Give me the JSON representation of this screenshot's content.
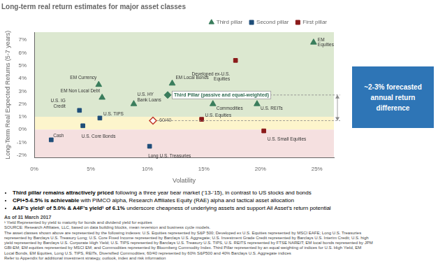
{
  "chart_data": {
    "type": "scatter",
    "title": "Long-term real return estimates for major asset classes",
    "x_label": "Volatility",
    "y_label": "Long-Term Real Expected Returns (5-7 years)",
    "xlim": [
      0.0,
      0.265
    ],
    "xticks": [
      {
        "value": 0.0,
        "label": "0%"
      },
      {
        "value": 0.05,
        "label": "5%"
      },
      {
        "value": 0.1,
        "label": "10%"
      },
      {
        "value": 0.15,
        "label": "15%"
      },
      {
        "value": 0.2,
        "label": "20%"
      },
      {
        "value": 0.25,
        "label": "25%"
      }
    ],
    "ylim": [
      -0.022,
      0.076
    ],
    "yticks": [
      {
        "value": -0.02,
        "label": "-2%"
      },
      {
        "value": -0.01,
        "label": "-1%"
      },
      {
        "value": 0.0,
        "label": "0%"
      },
      {
        "value": 0.01,
        "label": "1%"
      },
      {
        "value": 0.02,
        "label": "2%"
      },
      {
        "value": 0.03,
        "label": "3%"
      },
      {
        "value": 0.04,
        "label": "4%"
      },
      {
        "value": 0.05,
        "label": "5%"
      },
      {
        "value": 0.06,
        "label": "6%"
      },
      {
        "value": 0.07,
        "label": "7%"
      }
    ],
    "grid": false,
    "legend": "top",
    "series": [
      {
        "name": "Third pillar",
        "color": "#3a7d5c",
        "marker": "triangle",
        "points": [
          {
            "label": "EM Non Local Debt",
            "x": 0.06,
            "y": 0.025
          },
          {
            "label": "EM Currency",
            "x": 0.057,
            "y": 0.035
          },
          {
            "label": "U.S. HY\nBank Loans",
            "x": 0.088,
            "y": 0.02
          },
          {
            "label": "EM Local Bonds",
            "x": 0.122,
            "y": 0.036
          },
          {
            "label": "Commodities",
            "x": 0.158,
            "y": 0.02
          },
          {
            "label": "U.S. REITs",
            "x": 0.197,
            "y": 0.02
          },
          {
            "label": "EM\nEquities",
            "x": 0.247,
            "y": 0.068
          }
        ]
      },
      {
        "name": "Second pillar",
        "color": "#1f4e79",
        "marker": "square",
        "points": [
          {
            "label": "Cash",
            "x": 0.015,
            "y": -0.008
          },
          {
            "label": "U.S. Core Bonds",
            "x": 0.043,
            "y": 0.003
          },
          {
            "label": "U.S. IG\nCredit",
            "x": 0.04,
            "y": 0.015
          },
          {
            "label": "U.S. TIPS",
            "x": 0.058,
            "y": 0.009
          },
          {
            "label": "Long U.S. Treasuries",
            "x": 0.102,
            "y": -0.013
          }
        ]
      },
      {
        "name": "First pillar",
        "color": "#8b1a1a",
        "marker": "square",
        "points": [
          {
            "label": "U.S. Equities",
            "x": 0.148,
            "y": 0.008
          },
          {
            "label": "U.S. Small Equities",
            "x": 0.203,
            "y": -0.001
          },
          {
            "label": "Developed ex-U.S.\nEquities",
            "x": 0.178,
            "y": 0.054
          }
        ]
      }
    ],
    "highlights": [
      {
        "label": "Third Pillar (passive and equal-weighted)",
        "x": 0.118,
        "y": 0.027,
        "color": "#3a7d5c",
        "marker": "diamond"
      },
      {
        "label": "60/40",
        "x": 0.105,
        "y": 0.007,
        "color": "#c0392b",
        "marker": "open_diamond"
      }
    ],
    "bands": [
      {
        "from": 0.01,
        "color": "#dce8d0"
      },
      {
        "from": 0.0,
        "to": 0.01,
        "color": "#fdf5cc"
      },
      {
        "to": 0.0,
        "color": "#f5e0e0"
      }
    ],
    "annotations": [
      {
        "text": "~2-3% forecasted\nannual return\ndifference",
        "color": "#2e75b6"
      }
    ],
    "bullets": [
      {
        "bold": "Third pillar remains attractively priced",
        "rest": " following a three year bear market (‘13-‘15), in contrast to US stocks and bonds"
      },
      {
        "bold": "CPI+5-6.5% is achievable",
        "rest": " with PIMCO alpha, Research Affiliates Equity (RAE) alpha and tactical asset allocation"
      },
      {
        "bold": "AAF’s yield¹ of 5.0% & A4F’s yield¹ of 6.1%",
        "rest": " underscore cheapness of underlying assets and support All Asset’s return potential"
      }
    ],
    "footnote_date": "As of 31 March 2017",
    "footnotes": [
      "¹ Yield Represented by yield to maturity for bonds and dividend yield for equities",
      "SOURCE: Research Affiliates, LLC, based on data building blocks, mean reversion and business cycle models.",
      "The asset classes shown above are represented by the following indexes: U.S. Equities represented by S&P 500; Developed ex U.S. Equities represented by MSCI EAFE; Long U.S. Treasuries",
      "represented by Barclays U.S. Treasury Long; U.S. Core Fixed Income represented by Barclays U.S. Aggregate; U.S. Investment Grade Credit represented by Barclays U.S. Interim Credit; U.S. high",
      "yield represented by Barclays U.S. Corporate High Yield; U.S. TIPS represented by Barclays U.S. Treasury U.S. TIPS, U.S. REITS represented by FTSE NAREIT; EM local bonds represented by JPM",
      "GBI-EM; EM equities represented by MSCI EM; and Commodities represented by Bloomberg Commodity Index. Third Pillar represented by an equal weighting of indices for U.S. High Yield, EM",
      "Local Bonds, EM Equities, Long U.S. TIPS, REITs, Diversified Commodities; 60/40 represented by 60% S&P500 and 40% Barclays U.S. Aggregate indices",
      "Refer to Appendix for additional investment strategy, outlook, index and risk information"
    ]
  }
}
